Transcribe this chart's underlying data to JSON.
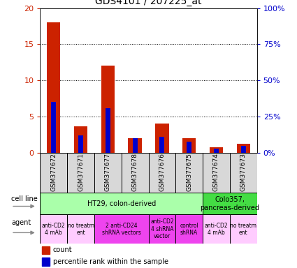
{
  "title": "GDS4101 / 207225_at",
  "samples": [
    "GSM377672",
    "GSM377671",
    "GSM377677",
    "GSM377678",
    "GSM377676",
    "GSM377675",
    "GSM377674",
    "GSM377673"
  ],
  "counts": [
    18,
    3.7,
    12,
    2,
    4,
    2,
    0.8,
    1.2
  ],
  "percentile_ranks_pct": [
    35,
    12,
    31,
    10,
    11,
    7.5,
    3,
    5
  ],
  "ylim_left": [
    0,
    20
  ],
  "ylim_right": [
    0,
    100
  ],
  "yticks_left": [
    0,
    5,
    10,
    15,
    20
  ],
  "yticks_right": [
    0,
    25,
    50,
    75,
    100
  ],
  "ytick_labels_left": [
    "0",
    "5",
    "10",
    "15",
    "20"
  ],
  "ytick_labels_right": [
    "0%",
    "25%",
    "50%",
    "75%",
    "100%"
  ],
  "bar_color": "#cc2200",
  "dot_color": "#0000cc",
  "cell_line_row": [
    {
      "label": "HT29, colon-derived",
      "start": 0,
      "end": 6,
      "color": "#aaffaa"
    },
    {
      "label": "Colo357,\npancreas-derived",
      "start": 6,
      "end": 8,
      "color": "#44dd44"
    }
  ],
  "agent_row": [
    {
      "label": "anti-CD2\n4 mAb",
      "start": 0,
      "end": 1,
      "color": "#ffccff"
    },
    {
      "label": "no treatm\nent",
      "start": 1,
      "end": 2,
      "color": "#ffccff"
    },
    {
      "label": "2 anti-CD24\nshRNA vectors",
      "start": 2,
      "end": 4,
      "color": "#ee44ee"
    },
    {
      "label": "anti-CD2\n4 shRNA\nvector",
      "start": 4,
      "end": 5,
      "color": "#ee44ee"
    },
    {
      "label": "control\nshRNA",
      "start": 5,
      "end": 6,
      "color": "#ee44ee"
    },
    {
      "label": "anti-CD2\n4 mAb",
      "start": 6,
      "end": 7,
      "color": "#ffccff"
    },
    {
      "label": "no treatm\nent",
      "start": 7,
      "end": 8,
      "color": "#ffccff"
    }
  ],
  "legend_count_color": "#cc2200",
  "legend_pct_color": "#0000cc",
  "grid_color": "black",
  "background_color": "#ffffff",
  "tick_label_color_left": "#cc2200",
  "tick_label_color_right": "#0000cc",
  "sample_box_color": "#d8d8d8",
  "arrow_color": "#888888"
}
